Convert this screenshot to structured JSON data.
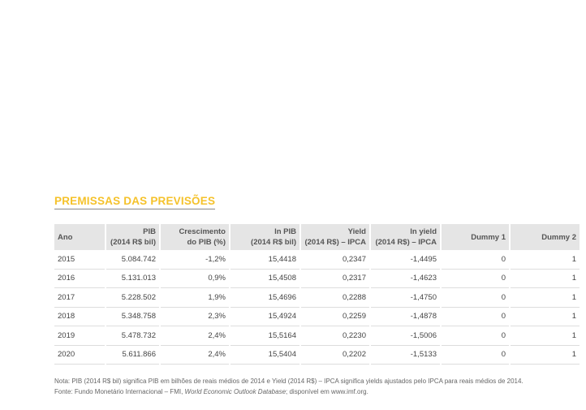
{
  "title": "PREMISSAS DAS PREVISÕES",
  "table": {
    "header": [
      [
        "Ano"
      ],
      [
        "PIB",
        "(2014 R$ bil)"
      ],
      [
        "Crescimento",
        "do PIB (%)"
      ],
      [
        "ln PIB",
        "(2014 R$ bil)"
      ],
      [
        "Yield",
        "(2014 R$) – IPCA"
      ],
      [
        "ln yield",
        "(2014 R$) – IPCA"
      ],
      [
        "Dummy 1"
      ],
      [
        "Dummy 2"
      ]
    ],
    "rows": [
      [
        "2015",
        "5.084.742",
        "-1,2%",
        "15,4418",
        "0,2347",
        "-1,4495",
        "0",
        "1"
      ],
      [
        "2016",
        "5.131.013",
        "0,9%",
        "15,4508",
        "0,2317",
        "-1,4623",
        "0",
        "1"
      ],
      [
        "2017",
        "5.228.502",
        "1,9%",
        "15,4696",
        "0,2288",
        "-1,4750",
        "0",
        "1"
      ],
      [
        "2018",
        "5.348.758",
        "2,3%",
        "15,4924",
        "0,2259",
        "-1,4878",
        "0",
        "1"
      ],
      [
        "2019",
        "5.478.732",
        "2,4%",
        "15,5164",
        "0,2230",
        "-1,5006",
        "0",
        "1"
      ],
      [
        "2020",
        "5.611.866",
        "2,4%",
        "15,5404",
        "0,2202",
        "-1,5133",
        "0",
        "1"
      ]
    ]
  },
  "notes": [
    [
      "Nota: PIB (2014 R$ bil) significa PIB em bilhões de reais médios de 2014 e Yield (2014 R$) – IPCA significa yields ajustados pelo IPCA para reais médios de 2014."
    ],
    [
      "Fonte: Fundo Monetário Internacional – FMI, ",
      "World Economic Outlook Database",
      "; disponível em www.imf.org."
    ]
  ]
}
